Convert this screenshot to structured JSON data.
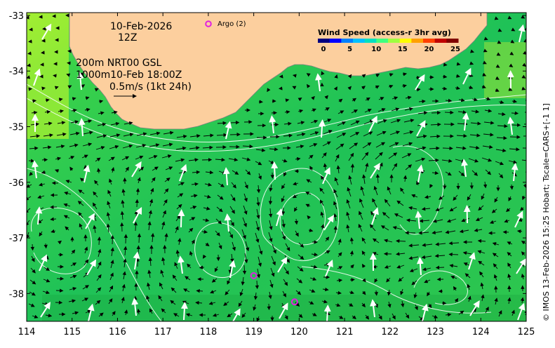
{
  "map": {
    "date_line": "10-Feb-2026",
    "time_line": "12Z",
    "depth_line_1": "200m  NRT00 GSL",
    "depth_line_2": "1000m10-Feb 18:00Z",
    "scale_line": "0.5m/s (1kt 24h)",
    "argo_label": "Argo (2)",
    "side_label": "© IMOS 13-Feb-2026 15:25 Hobart; Tscale=CARS+[-1 1]",
    "legend": {
      "title": "Wind Speed (access-r 3hr avg)",
      "ticks": [
        "0",
        "5",
        "10",
        "15",
        "20",
        "25"
      ],
      "colors": [
        "#000080",
        "#0000ff",
        "#0080ff",
        "#00c0ff",
        "#00e0c0",
        "#40ff80",
        "#a0ff40",
        "#ffff00",
        "#ffa000",
        "#ff4000",
        "#c00000",
        "#800000"
      ]
    },
    "x_ticks": [
      "114",
      "115",
      "116",
      "117",
      "118",
      "119",
      "120",
      "121",
      "122",
      "123",
      "124",
      "125"
    ],
    "y_ticks": [
      "-33",
      "-34",
      "-35",
      "-36",
      "-37",
      "-38"
    ],
    "colors": {
      "land": "#fccf9e",
      "ocean": "#22c455",
      "ocean_light": "#7ee03a",
      "argo": "#e020e0"
    },
    "argo_floats": [
      {
        "lon": 119.0,
        "lat": -37.68
      },
      {
        "lon": 119.9,
        "lat": -38.15
      }
    ]
  }
}
